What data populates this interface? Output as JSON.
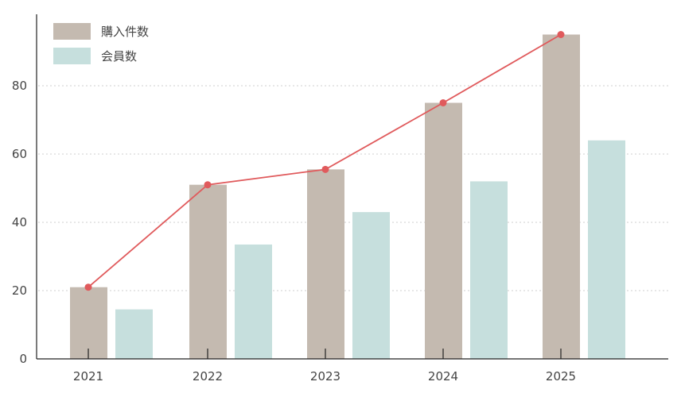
{
  "chart_data": {
    "type": "bar",
    "title": "",
    "xlabel": "",
    "ylabel": "",
    "categories": [
      "2021",
      "2022",
      "2023",
      "2024",
      "2025"
    ],
    "series": [
      {
        "name": "購入件数",
        "type": "bar",
        "color": "#C4BAB0",
        "values": [
          21,
          51,
          55.5,
          75,
          95
        ]
      },
      {
        "name": "会員数",
        "type": "bar",
        "color": "#C6DFDD",
        "values": [
          14.5,
          33.5,
          43,
          52,
          64
        ]
      },
      {
        "name": "購入件数",
        "type": "line",
        "color": "#E05A5C",
        "values": [
          21,
          51,
          55.5,
          75,
          95
        ]
      }
    ],
    "ylim": [
      0,
      100
    ],
    "yticks": [
      0,
      20,
      40,
      60,
      80
    ],
    "grid": {
      "y": true,
      "style": "dotted"
    },
    "legend": {
      "position": "top-left",
      "entries": [
        "購入件数",
        "会員数"
      ]
    }
  }
}
